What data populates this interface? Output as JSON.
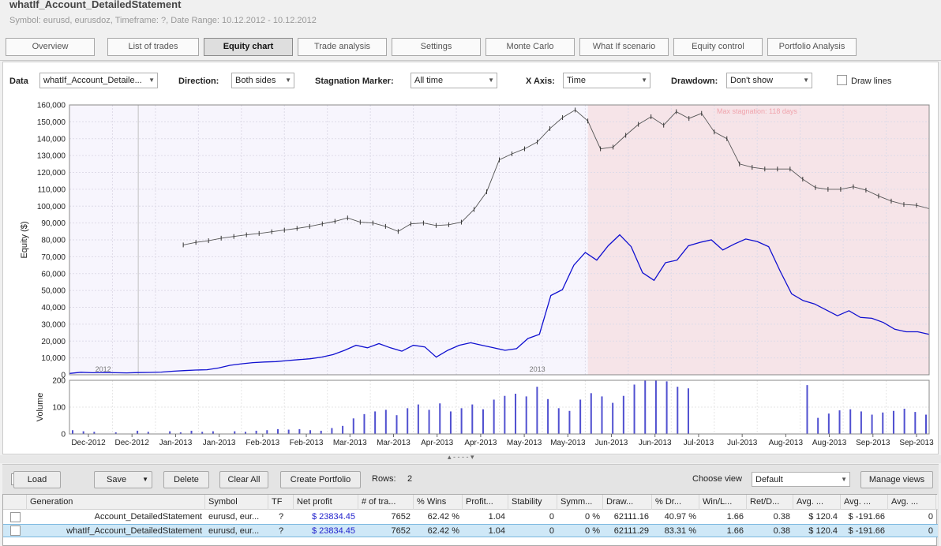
{
  "header": {
    "title": "whatIf_Account_DetailedStatement",
    "subtitle": "Symbol: eurusd, eurusdoz, Timeframe: ?, Date Range: 10.12.2012 - 10.12.2012"
  },
  "tabs": [
    {
      "label": "Overview",
      "active": false
    },
    {
      "label": "List of trades",
      "active": false
    },
    {
      "label": "Equity chart",
      "active": true
    },
    {
      "label": "Trade analysis",
      "active": false
    },
    {
      "label": "Settings",
      "active": false
    },
    {
      "label": "Monte Carlo",
      "active": false
    },
    {
      "label": "What If scenario",
      "active": false
    },
    {
      "label": "Equity control",
      "active": false
    },
    {
      "label": "Portfolio Analysis",
      "active": false
    }
  ],
  "controls": {
    "data_label": "Data",
    "data_value": "whatIf_Account_Detaile...",
    "direction_label": "Direction:",
    "direction_value": "Both sides",
    "stagnation_label": "Stagnation Marker:",
    "stagnation_value": "All time",
    "xaxis_label": "X Axis:",
    "xaxis_value": "Time",
    "drawdown_label": "Drawdown:",
    "drawdown_value": "Don't show",
    "drawlines_label": "Draw lines",
    "drawlines_checked": false
  },
  "chart_data": [
    {
      "type": "line",
      "ylabel": "Equity ($)",
      "ylim": [
        0,
        160000
      ],
      "yticks": [
        "160,000",
        "150,000",
        "140,000",
        "130,000",
        "120,000",
        "110,000",
        "100,000",
        "90,000",
        "80,000",
        "70,000",
        "60,000",
        "50,000",
        "40,000",
        "30,000",
        "20,000",
        "10,000",
        "0"
      ],
      "year_labels": [
        "2012",
        "2013"
      ],
      "stagnation_label": "Max stagnation: 118 days",
      "series": [
        {
          "values": [
            800,
            1500,
            1200,
            1300,
            1200,
            1100,
            1300,
            1400,
            1600,
            2100,
            2500,
            2800,
            3000,
            4000,
            5600,
            6500,
            7200,
            7600,
            7800,
            8400,
            9000,
            9500,
            10500,
            12000,
            14500,
            17500,
            16000,
            18500,
            16000,
            14000,
            17500,
            16500,
            10500,
            14500,
            17500,
            19000,
            17500,
            16000,
            14500,
            15500,
            21500,
            24000,
            47000,
            50500,
            65000,
            72500,
            68000,
            76500,
            83000,
            76000,
            60500,
            56000,
            66500,
            68000,
            76500,
            78500,
            80000,
            74000,
            77500,
            80500,
            79000,
            76000,
            61500,
            48000,
            44000,
            42000,
            38500,
            35000,
            38000,
            34000,
            33500,
            31000,
            27000,
            25500,
            25500,
            24000
          ]
        },
        {
          "values": [
            null,
            null,
            null,
            null,
            null,
            null,
            null,
            null,
            null,
            77000,
            78500,
            79500,
            81000,
            82000,
            83000,
            83800,
            84800,
            85800,
            86800,
            88000,
            89500,
            91000,
            93000,
            90500,
            90000,
            88000,
            85000,
            89500,
            90000,
            88500,
            89000,
            90500,
            98000,
            108500,
            127500,
            131000,
            134000,
            138000,
            146000,
            152500,
            157000,
            150500,
            134000,
            135000,
            142000,
            148500,
            153000,
            148000,
            156000,
            152000,
            155000,
            144000,
            140000,
            125000,
            123000,
            122000,
            122000,
            122000,
            116000,
            111000,
            110000,
            110000,
            111500,
            109500,
            106000,
            103000,
            101000,
            100500,
            98500
          ]
        }
      ]
    },
    {
      "type": "bar",
      "ylabel": "Volume",
      "ylim": [
        0,
        200
      ],
      "yticks": [
        "200",
        "100",
        "0"
      ],
      "x_tick_labels": [
        "Dec-2012",
        "Dec-2012",
        "Jan-2013",
        "Jan-2013",
        "Feb-2013",
        "Feb-2013",
        "Mar-2013",
        "Mar-2013",
        "Apr-2013",
        "Apr-2013",
        "May-2013",
        "May-2013",
        "Jun-2013",
        "Jun-2013",
        "Jul-2013",
        "Jul-2013",
        "Aug-2013",
        "Aug-2013",
        "Sep-2013",
        "Sep-2013"
      ],
      "values": [
        14,
        10,
        8,
        0,
        6,
        0,
        12,
        8,
        0,
        10,
        6,
        12,
        8,
        10,
        0,
        10,
        8,
        12,
        14,
        18,
        16,
        18,
        14,
        12,
        22,
        30,
        58,
        74,
        84,
        90,
        70,
        96,
        110,
        90,
        114,
        84,
        96,
        110,
        92,
        128,
        142,
        150,
        140,
        176,
        130,
        96,
        86,
        128,
        152,
        140,
        116,
        142,
        184,
        200,
        220,
        196,
        176,
        170,
        0,
        0,
        0,
        0,
        0,
        0,
        0,
        0,
        0,
        0,
        182,
        60,
        76,
        88,
        92,
        84,
        72,
        80,
        86,
        94,
        82,
        72
      ]
    }
  ],
  "splitter_marks": "▴ - - - - ▾",
  "bottom": {
    "load": "Load",
    "save": "Save",
    "delete": "Delete",
    "clear_all": "Clear All",
    "create_portfolio": "Create Portfolio",
    "rows_label": "Rows:",
    "rows_value": "2",
    "choose_view_label": "Choose view",
    "choose_view_value": "Default",
    "manage_views": "Manage views"
  },
  "table": {
    "headers": [
      "Generation",
      "Symbol",
      "TF",
      "Net profit",
      "# of tra...",
      "% Wins",
      "Profit...",
      "Stability",
      "Symm...",
      "Draw...",
      "% Dr...",
      "Win/L...",
      "Ret/D...",
      "Avg. ...",
      "Avg. ...",
      "Avg. ..."
    ],
    "rows": [
      [
        "Account_DetailedStatement",
        "eurusd, eur...",
        "?",
        "$ 23834.45",
        "7652",
        "62.42 %",
        "1.04",
        "0",
        "0 %",
        "62111.16",
        "40.97 %",
        "1.66",
        "0.38",
        "$ 120.4",
        "$ -191.66",
        "0"
      ],
      [
        "whatIf_Account_DetailedStatement",
        "eurusd, eur...",
        "?",
        "$ 23834.45",
        "7652",
        "62.42 %",
        "1.04",
        "0",
        "0 %",
        "62111.29",
        "83.31 %",
        "1.66",
        "0.38",
        "$ 120.4",
        "$ -191.66",
        "0"
      ]
    ]
  }
}
